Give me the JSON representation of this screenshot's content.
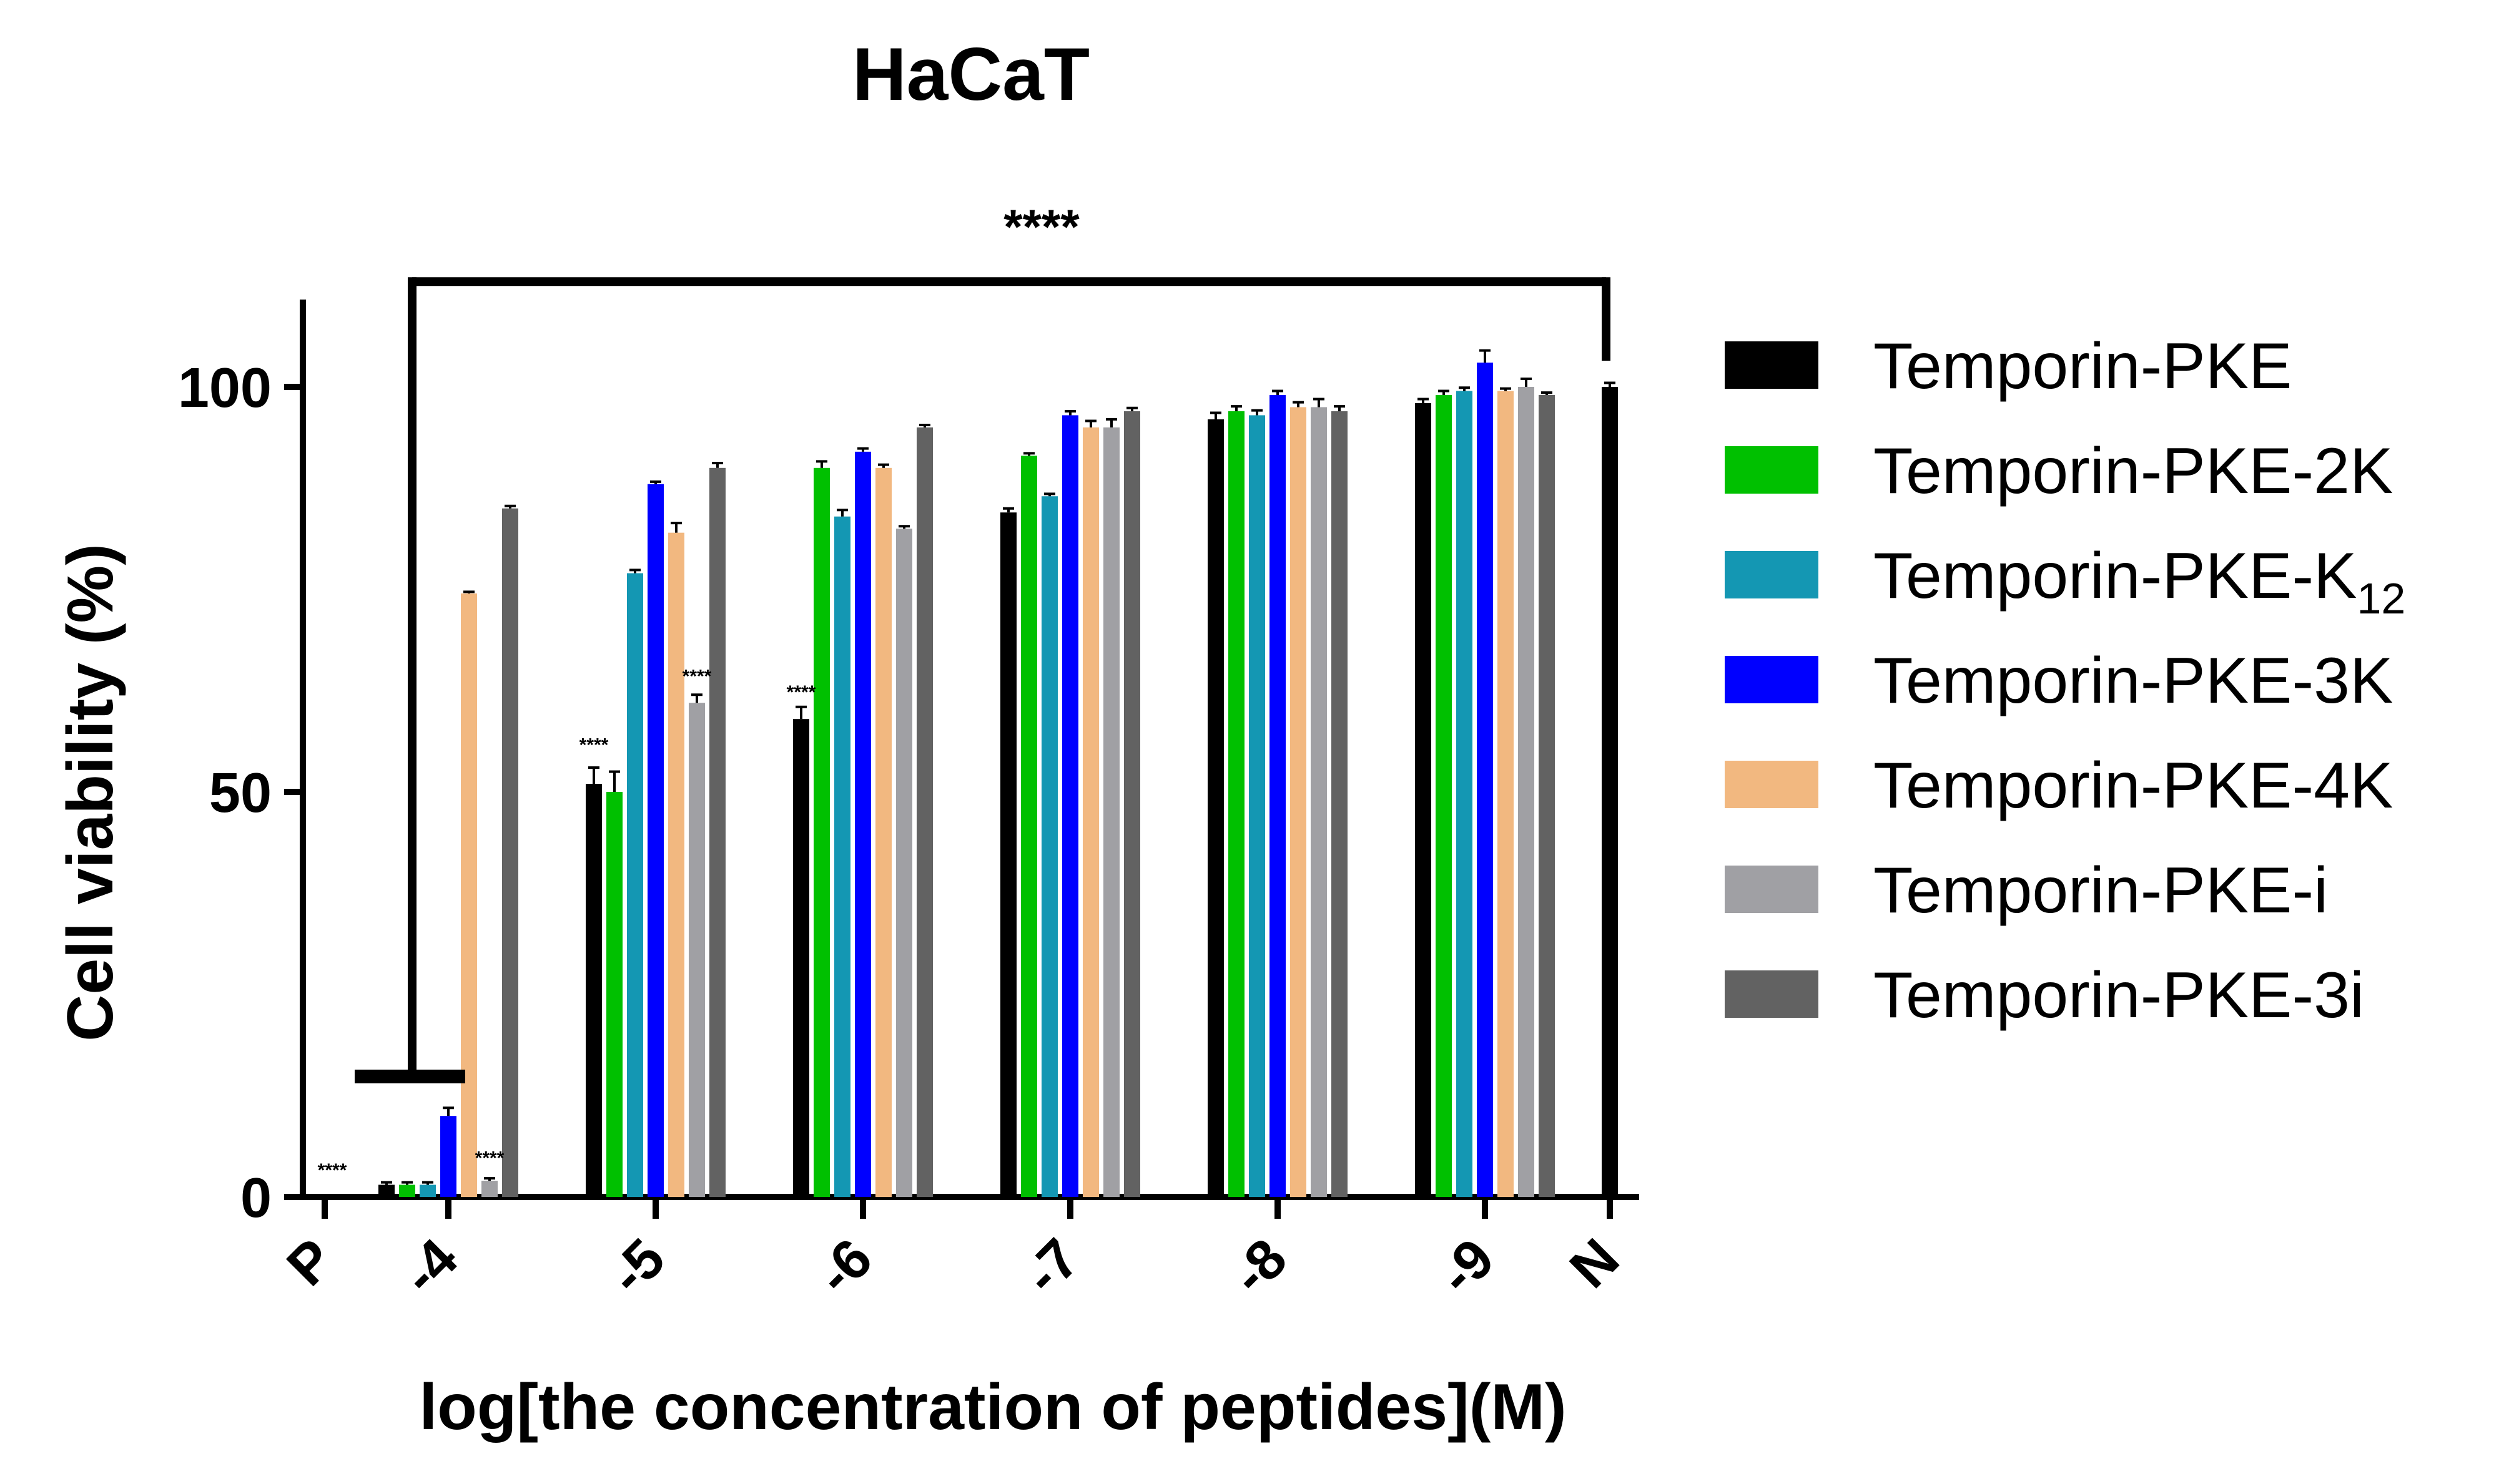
{
  "chart_data": {
    "type": "bar",
    "title": "HaCaT",
    "xlabel": "log[the concentration of peptides](M)",
    "ylabel": "Cell viability (%)",
    "ylim": [
      0,
      110
    ],
    "yticks": [
      "0",
      "50",
      "100"
    ],
    "ytick_values": [
      0,
      50,
      100
    ],
    "categories": [
      "P",
      "-4",
      "-5",
      "-6",
      "-7",
      "-8",
      "-9",
      "N"
    ],
    "series": [
      {
        "name": "Temporin-PKE",
        "color": "#000000",
        "values": [
          null,
          1.5,
          51,
          59,
          84.5,
          96,
          98,
          null
        ],
        "errors": [
          null,
          0.3,
          2,
          1.5,
          0.5,
          0.8,
          0.5,
          null
        ]
      },
      {
        "name": "Temporin-PKE-2K",
        "color": "#00c000",
        "values": [
          null,
          1.5,
          50,
          90,
          91.5,
          97,
          99,
          null
        ],
        "errors": [
          null,
          0.3,
          2.5,
          0.8,
          0.3,
          0.6,
          0.5,
          null
        ]
      },
      {
        "name": "Temporin-PKE-K12",
        "name_base": "Temporin-PKE-K",
        "name_sub": "12",
        "color": "#1497b3",
        "values": [
          null,
          1.5,
          77,
          84,
          86.5,
          96.5,
          99.5,
          null
        ],
        "errors": [
          null,
          0.3,
          0.4,
          0.8,
          0.3,
          0.6,
          0.4,
          null
        ]
      },
      {
        "name": "Temporin-PKE-3K",
        "color": "#0000ff",
        "values": [
          null,
          10,
          88,
          92,
          96.5,
          99,
          103,
          null
        ],
        "errors": [
          null,
          1,
          0.3,
          0.4,
          0.5,
          0.5,
          1.5,
          null
        ]
      },
      {
        "name": "Temporin-PKE-4K",
        "color": "#f2b880",
        "values": [
          null,
          74.5,
          82,
          90,
          95,
          97.5,
          99.5,
          null
        ],
        "errors": [
          null,
          0.2,
          1.2,
          0.4,
          0.8,
          0.6,
          0.3,
          null
        ]
      },
      {
        "name": "Temporin-PKE-i",
        "color": "#a0a0a4",
        "values": [
          null,
          2,
          61,
          82.5,
          95,
          97.5,
          100,
          null
        ],
        "errors": [
          null,
          0.3,
          1,
          0.3,
          1,
          1,
          1,
          null
        ]
      },
      {
        "name": "Temporin-PKE-3i",
        "color": "#626262",
        "values": [
          null,
          85,
          90,
          95,
          97,
          97,
          99,
          null
        ],
        "errors": [
          null,
          0.3,
          0.6,
          0.3,
          0.4,
          0.6,
          0.3,
          null
        ]
      }
    ],
    "control_bars": [
      {
        "category": "N",
        "value": 100,
        "error": 0.5,
        "color": "#000000"
      }
    ],
    "annotations": [
      {
        "text": "****",
        "category": "P",
        "y": 3
      },
      {
        "text": "****",
        "category": "-4",
        "series": "Temporin-PKE-i",
        "y": 4.5
      },
      {
        "text": "****",
        "category": "-5",
        "series": "Temporin-PKE",
        "y": 55.5
      },
      {
        "text": "****",
        "category": "-5",
        "series": "Temporin-PKE-i",
        "y": 64
      },
      {
        "text": "****",
        "category": "-6",
        "series": "Temporin-PKE",
        "y": 62
      }
    ],
    "bracket": {
      "text": "****",
      "from": "-4",
      "to": "N",
      "y": 113
    }
  }
}
